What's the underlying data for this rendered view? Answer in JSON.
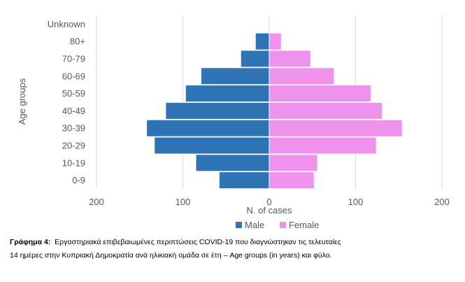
{
  "chart_data": {
    "type": "bar",
    "orientation": "horizontal-population-pyramid",
    "categories": [
      "0-9",
      "10-19",
      "20-29",
      "30-39",
      "40-49",
      "50-59",
      "60-69",
      "70-79",
      "80+",
      "Unknown"
    ],
    "series": [
      {
        "name": "Male",
        "values": [
          58,
          85,
          133,
          142,
          120,
          97,
          79,
          33,
          16,
          0
        ],
        "color": "#2f75b5"
      },
      {
        "name": "Female",
        "values": [
          52,
          56,
          124,
          154,
          131,
          118,
          75,
          48,
          14,
          0
        ],
        "color": "#ee92ee"
      }
    ],
    "xlabel": "N. of cases",
    "ylabel": "Age groups",
    "x_ticks": [
      200,
      100,
      0,
      100,
      200
    ],
    "xlim": [
      -200,
      200
    ],
    "grid": true,
    "legend_position": "bottom"
  },
  "caption": {
    "label": "Γράφημα 4:",
    "text_line1": "Εργαστηριακά επιβεβαιωμένες περιπτώσεις COVID-19 που διαγνώστηκαν τις τελευταίες",
    "text_line2": "14 ημέρες στην Κυπριακή Δημοκρατία ανά ηλικιακή ομάδα σε έτη – Age groups (in years) και φύλο."
  }
}
